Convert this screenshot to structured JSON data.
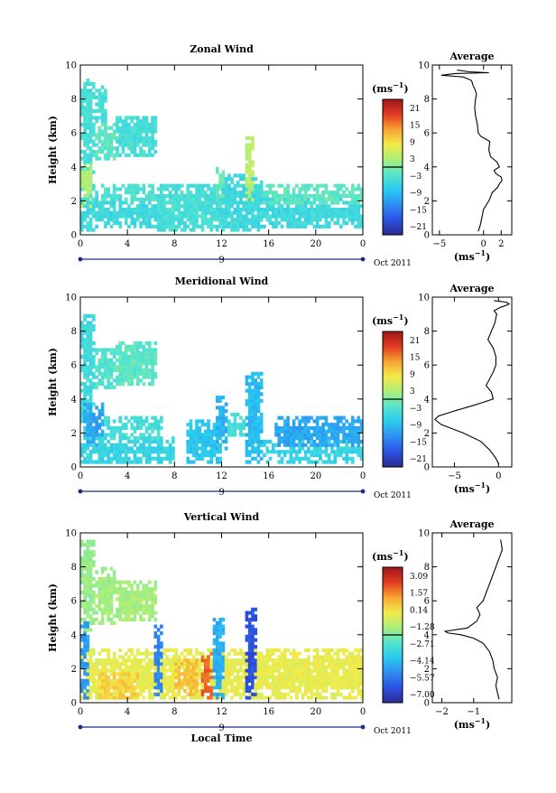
{
  "chart_data": [
    {
      "type": "heatmap",
      "title": "Zonal Wind",
      "ylabel": "Height (km)",
      "x_ticks": [
        "0",
        "4",
        "8",
        "12",
        "16",
        "20",
        "0"
      ],
      "y_ticks": [
        "0",
        "2",
        "4",
        "6",
        "8",
        "10"
      ],
      "xlim": [
        0,
        24
      ],
      "ylim": [
        0,
        10
      ],
      "date_bar": {
        "label": "9",
        "month": "Oct 2011"
      },
      "colorbar": {
        "unit": "(ms",
        "unit_exp": "−1",
        "close": ")",
        "ticks": [
          "21",
          "15",
          "9",
          "3",
          "−3",
          "−9",
          "−15",
          "−21"
        ],
        "range": [
          -24,
          24
        ]
      },
      "features": [
        {
          "t0": 0,
          "t1": 1.2,
          "h0": 0.3,
          "h1": 9.2,
          "v": -4
        },
        {
          "t0": 0.1,
          "t1": 0.9,
          "h0": 1.6,
          "h1": 4.2,
          "v": 3
        },
        {
          "t0": 1.2,
          "t1": 3.0,
          "h0": 4.4,
          "h1": 6.6,
          "v": -2
        },
        {
          "t0": 1.2,
          "t1": 2.2,
          "h0": 6.6,
          "h1": 8.8,
          "v": -4
        },
        {
          "t0": 3.0,
          "t1": 6.5,
          "h0": 4.6,
          "h1": 7.0,
          "v": -4
        },
        {
          "t0": 0,
          "t1": 24,
          "h0": 0.4,
          "h1": 2.2,
          "v": -5
        },
        {
          "t0": 1.0,
          "t1": 6.5,
          "h0": 2.0,
          "h1": 3.0,
          "v": -3
        },
        {
          "t0": 6.5,
          "t1": 12.0,
          "h0": 0.3,
          "h1": 3.0,
          "v": -4
        },
        {
          "t0": 12.0,
          "t1": 15.5,
          "h0": 0.3,
          "h1": 3.6,
          "v": -5
        },
        {
          "t0": 14.1,
          "t1": 14.7,
          "h0": 2.0,
          "h1": 5.8,
          "v": 4
        },
        {
          "t0": 15.5,
          "t1": 24,
          "h0": 1.8,
          "h1": 3.0,
          "v": -2
        },
        {
          "t0": 11.5,
          "t1": 12.3,
          "h0": 2.0,
          "h1": 4.0,
          "v": -1
        }
      ],
      "average_profile": {
        "title": "Average",
        "xlabel": "(ms",
        "xlabel_exp": "−1",
        "xlabel_close": ")",
        "x_ticks": [
          "−5",
          "0",
          "2"
        ],
        "x_tick_values": [
          -5,
          0,
          2
        ],
        "xlim": [
          -5.8,
          3.2
        ],
        "y_ticks": [
          "0",
          "2",
          "4",
          "6",
          "8",
          "10"
        ],
        "ylim": [
          0,
          10
        ],
        "x": [
          -0.6,
          -0.4,
          -0.2,
          0.0,
          0.6,
          1.0,
          1.6,
          1.8,
          2.1,
          2.0,
          1.4,
          1.2,
          1.8,
          1.5,
          0.8,
          0.6,
          0.7,
          -0.3,
          -0.6,
          -0.7,
          -0.9,
          -1.0,
          -0.9,
          -0.8,
          -1.0,
          -1.2,
          -1.3,
          -1.4,
          -2.3,
          -4.8,
          -3.2,
          0.6,
          -1.6,
          -3.0
        ],
        "h": [
          0.2,
          0.5,
          1.0,
          1.5,
          2.0,
          2.5,
          2.8,
          3.0,
          3.2,
          3.4,
          3.6,
          3.8,
          4.0,
          4.3,
          4.6,
          5.0,
          5.5,
          5.8,
          6.0,
          6.5,
          7.0,
          7.5,
          8.0,
          8.3,
          8.6,
          8.8,
          9.0,
          9.1,
          9.3,
          9.4,
          9.5,
          9.55,
          9.6,
          9.7
        ]
      }
    },
    {
      "type": "heatmap",
      "title": "Meridional Wind",
      "ylabel": "Height (km)",
      "x_ticks": [
        "0",
        "4",
        "8",
        "12",
        "16",
        "20",
        "0"
      ],
      "y_ticks": [
        "0",
        "2",
        "4",
        "6",
        "8",
        "10"
      ],
      "xlim": [
        0,
        24
      ],
      "ylim": [
        0,
        10
      ],
      "date_bar": {
        "label": "9",
        "month": "Oct 2011"
      },
      "colorbar": {
        "unit": "(ms",
        "unit_exp": "−1",
        "close": ")",
        "ticks": [
          "21",
          "15",
          "9",
          "3",
          "−3",
          "−9",
          "−15",
          "−21"
        ],
        "range": [
          -24,
          24
        ]
      },
      "features": [
        {
          "t0": 0,
          "t1": 1.2,
          "h0": 0.3,
          "h1": 9.0,
          "v": -5
        },
        {
          "t0": 0.2,
          "t1": 2.0,
          "h0": 1.0,
          "h1": 3.8,
          "v": -11
        },
        {
          "t0": 1.2,
          "t1": 3.0,
          "h0": 4.6,
          "h1": 7.0,
          "v": -3
        },
        {
          "t0": 3.0,
          "t1": 6.5,
          "h0": 4.8,
          "h1": 7.4,
          "v": -2
        },
        {
          "t0": 0,
          "t1": 8.0,
          "h0": 0.3,
          "h1": 1.8,
          "v": -6
        },
        {
          "t0": 2.0,
          "t1": 7.0,
          "h0": 1.6,
          "h1": 3.0,
          "v": -4
        },
        {
          "t0": 9.0,
          "t1": 12.0,
          "h0": 0.3,
          "h1": 2.8,
          "v": -8
        },
        {
          "t0": 11.5,
          "t1": 12.5,
          "h0": 1.0,
          "h1": 4.2,
          "v": -10
        },
        {
          "t0": 14.0,
          "t1": 15.5,
          "h0": 0.3,
          "h1": 5.6,
          "v": -9
        },
        {
          "t0": 15.5,
          "t1": 24,
          "h0": 0.3,
          "h1": 1.6,
          "v": -6
        },
        {
          "t0": 16.5,
          "t1": 24,
          "h0": 1.2,
          "h1": 3.0,
          "v": -11
        },
        {
          "t0": 12.5,
          "t1": 14.0,
          "h0": 1.8,
          "h1": 3.2,
          "v": -4
        }
      ],
      "average_profile": {
        "title": "Average",
        "xlabel": "(ms",
        "xlabel_exp": "−1",
        "xlabel_close": ")",
        "x_ticks": [
          "−5",
          "0"
        ],
        "x_tick_values": [
          -5,
          0
        ],
        "xlim": [
          -7.5,
          1.5
        ],
        "y_ticks": [
          "0",
          "2",
          "4",
          "6",
          "8",
          "10"
        ],
        "ylim": [
          0,
          10
        ],
        "x": [
          0.0,
          -0.3,
          -1.0,
          -2.0,
          -4.0,
          -6.5,
          -7.2,
          -6.8,
          -5.0,
          -3.0,
          -1.8,
          -0.6,
          -0.8,
          -1.4,
          -1.0,
          -0.6,
          -0.3,
          -0.3,
          -0.6,
          -1.2,
          -0.8,
          -0.4,
          -0.3,
          -0.2,
          -0.5,
          0.2,
          0.8,
          1.2,
          0.9,
          -0.5
        ],
        "h": [
          0.2,
          0.5,
          1.0,
          1.5,
          2.0,
          2.5,
          2.8,
          3.0,
          3.3,
          3.6,
          3.8,
          4.0,
          4.4,
          4.8,
          5.2,
          5.6,
          6.0,
          6.5,
          7.0,
          7.5,
          8.0,
          8.5,
          8.8,
          9.0,
          9.2,
          9.4,
          9.5,
          9.6,
          9.7,
          9.8
        ]
      }
    },
    {
      "type": "heatmap",
      "title": "Vertical Wind",
      "ylabel": "Height (km)",
      "xlabel": "Local Time",
      "x_ticks": [
        "0",
        "4",
        "8",
        "12",
        "16",
        "20",
        "0"
      ],
      "y_ticks": [
        "0",
        "2",
        "4",
        "6",
        "8",
        "10"
      ],
      "xlim": [
        0,
        24
      ],
      "ylim": [
        0,
        10
      ],
      "date_bar": {
        "label": "9",
        "month": "Oct 2011"
      },
      "colorbar": {
        "unit": "(ms",
        "unit_exp": "−1",
        "close": ")",
        "ticks": [
          "3.09",
          "1.57",
          "0.14",
          "−1.28",
          "−2.71",
          "−4.14",
          "−5.57",
          "−7.00"
        ],
        "range": [
          -7.7,
          3.8
        ]
      },
      "features": [
        {
          "t0": 0,
          "t1": 1.2,
          "h0": 4.0,
          "h1": 9.6,
          "v": -1.6
        },
        {
          "t0": 1.2,
          "t1": 3.0,
          "h0": 4.6,
          "h1": 8.0,
          "v": -1.4
        },
        {
          "t0": 3.0,
          "t1": 6.5,
          "h0": 4.8,
          "h1": 7.2,
          "v": -1.3
        },
        {
          "t0": 0,
          "t1": 24,
          "h0": 0.2,
          "h1": 3.2,
          "v": -0.2
        },
        {
          "t0": 0.0,
          "t1": 0.8,
          "h0": 0.2,
          "h1": 4.8,
          "v": -4.8
        },
        {
          "t0": 6.3,
          "t1": 7.1,
          "h0": 0.5,
          "h1": 4.5,
          "v": -5.2
        },
        {
          "t0": 10.3,
          "t1": 11.3,
          "h0": 0.3,
          "h1": 3.0,
          "v": 2.0
        },
        {
          "t0": 11.3,
          "t1": 12.2,
          "h0": 0.2,
          "h1": 5.0,
          "v": -4.4
        },
        {
          "t0": 14.0,
          "t1": 15.0,
          "h0": 0.2,
          "h1": 5.6,
          "v": -6.4
        },
        {
          "t0": 8.0,
          "t1": 10.0,
          "h0": 0.5,
          "h1": 2.5,
          "v": 0.8
        },
        {
          "t0": 1.5,
          "t1": 5.0,
          "h0": 0.2,
          "h1": 1.8,
          "v": 0.5
        }
      ],
      "average_profile": {
        "title": "Average",
        "xlabel": "(ms",
        "xlabel_exp": "−1",
        "xlabel_close": ")",
        "x_ticks": [
          "−2",
          "−1"
        ],
        "x_tick_values": [
          -2,
          -1
        ],
        "xlim": [
          -2.3,
          0.2
        ],
        "y_ticks": [
          "0",
          "2",
          "4",
          "6",
          "8",
          "10"
        ],
        "ylim": [
          0,
          10
        ],
        "x": [
          -0.2,
          -0.3,
          -0.25,
          -0.35,
          -0.4,
          -0.5,
          -0.7,
          -1.0,
          -1.4,
          -1.8,
          -1.9,
          -1.2,
          -0.9,
          -0.8,
          -0.9,
          -0.7,
          -0.6,
          -0.5,
          -0.4,
          -0.3,
          -0.2,
          -0.1,
          -0.15
        ],
        "h": [
          0.2,
          1.0,
          1.5,
          2.0,
          2.5,
          3.0,
          3.5,
          3.8,
          4.0,
          4.1,
          4.2,
          4.4,
          4.8,
          5.2,
          5.6,
          6.0,
          6.5,
          7.0,
          7.5,
          8.0,
          8.5,
          9.0,
          9.6
        ]
      }
    }
  ]
}
